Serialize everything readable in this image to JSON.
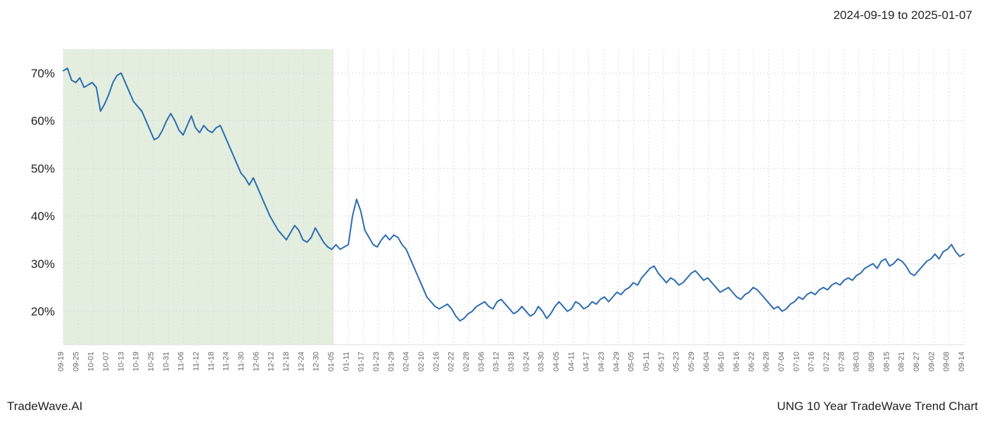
{
  "date_range_label": "2024-09-19 to 2025-01-07",
  "footer_left": "TradeWave.AI",
  "footer_right": "UNG 10 Year TradeWave Trend Chart",
  "chart": {
    "type": "line",
    "line_color": "#2b6cb0",
    "line_width": 2,
    "background_color": "#ffffff",
    "grid_color": "#dcdcdc",
    "grid_dash": "2,3",
    "highlight_band": {
      "from_tick_index": 0,
      "to_tick_index": 18,
      "fill_color": "#d9e8d4",
      "opacity": 0.75
    },
    "ylim": [
      13,
      75
    ],
    "ytick_values": [
      20,
      30,
      40,
      50,
      60,
      70
    ],
    "ytick_labels": [
      "20%",
      "30%",
      "40%",
      "50%",
      "60%",
      "70%"
    ],
    "ylabel_fontsize": 17,
    "ylabel_color": "#222222",
    "xtick_labels": [
      "09-19",
      "09-25",
      "10-01",
      "10-07",
      "10-13",
      "10-19",
      "10-25",
      "10-31",
      "11-06",
      "11-12",
      "11-18",
      "11-24",
      "11-30",
      "12-06",
      "12-12",
      "12-18",
      "12-24",
      "12-30",
      "01-05",
      "01-11",
      "01-17",
      "01-23",
      "01-29",
      "02-04",
      "02-10",
      "02-16",
      "02-22",
      "02-28",
      "03-06",
      "03-12",
      "03-18",
      "03-24",
      "03-30",
      "04-05",
      "04-11",
      "04-17",
      "04-23",
      "04-29",
      "05-05",
      "05-11",
      "05-17",
      "05-23",
      "05-29",
      "06-04",
      "06-10",
      "06-16",
      "06-22",
      "06-28",
      "07-04",
      "07-10",
      "07-16",
      "07-22",
      "07-28",
      "08-03",
      "08-09",
      "08-15",
      "08-21",
      "08-27",
      "09-02",
      "09-08",
      "09-14"
    ],
    "xlabel_fontsize": 11,
    "xlabel_color": "#666666",
    "xlabel_rotation": -90,
    "data_points": [
      70.5,
      71.0,
      68.5,
      68.0,
      69.0,
      67.0,
      67.5,
      68.0,
      67.0,
      62.0,
      63.5,
      65.5,
      68.0,
      69.5,
      70.0,
      68.0,
      66.0,
      64.0,
      63.0,
      62.0,
      60.0,
      58.0,
      56.0,
      56.5,
      58.0,
      60.0,
      61.5,
      60.0,
      58.0,
      57.0,
      59.0,
      61.0,
      58.5,
      57.5,
      59.0,
      58.0,
      57.5,
      58.5,
      59.0,
      57.0,
      55.0,
      53.0,
      51.0,
      49.0,
      48.0,
      46.5,
      48.0,
      46.0,
      44.0,
      42.0,
      40.0,
      38.5,
      37.0,
      36.0,
      35.0,
      36.5,
      38.0,
      37.0,
      35.0,
      34.5,
      35.5,
      37.5,
      36.0,
      34.5,
      33.5,
      33.0,
      34.0,
      33.0,
      33.5,
      34.0,
      40.0,
      43.5,
      41.0,
      37.0,
      35.5,
      34.0,
      33.5,
      35.0,
      36.0,
      35.0,
      36.0,
      35.5,
      34.0,
      33.0,
      31.0,
      29.0,
      27.0,
      25.0,
      23.0,
      22.0,
      21.0,
      20.5,
      21.0,
      21.5,
      20.5,
      19.0,
      18.0,
      18.5,
      19.5,
      20.0,
      21.0,
      21.5,
      22.0,
      21.0,
      20.5,
      22.0,
      22.5,
      21.5,
      20.5,
      19.5,
      20.0,
      21.0,
      20.0,
      19.0,
      19.5,
      21.0,
      20.0,
      18.5,
      19.5,
      21.0,
      22.0,
      21.0,
      20.0,
      20.5,
      22.0,
      21.5,
      20.5,
      21.0,
      22.0,
      21.5,
      22.5,
      23.0,
      22.0,
      23.0,
      24.0,
      23.5,
      24.5,
      25.0,
      26.0,
      25.5,
      27.0,
      28.0,
      29.0,
      29.5,
      28.0,
      27.0,
      26.0,
      27.0,
      26.5,
      25.5,
      26.0,
      27.0,
      28.0,
      28.5,
      27.5,
      26.5,
      27.0,
      26.0,
      25.0,
      24.0,
      24.5,
      25.0,
      24.0,
      23.0,
      22.5,
      23.5,
      24.0,
      25.0,
      24.5,
      23.5,
      22.5,
      21.5,
      20.5,
      21.0,
      20.0,
      20.5,
      21.5,
      22.0,
      23.0,
      22.5,
      23.5,
      24.0,
      23.5,
      24.5,
      25.0,
      24.5,
      25.5,
      26.0,
      25.5,
      26.5,
      27.0,
      26.5,
      27.5,
      28.0,
      29.0,
      29.5,
      30.0,
      29.0,
      30.5,
      31.0,
      29.5,
      30.0,
      31.0,
      30.5,
      29.5,
      28.0,
      27.5,
      28.5,
      29.5,
      30.5,
      31.0,
      32.0,
      31.0,
      32.5,
      33.0,
      34.0,
      32.5,
      31.5,
      32.0
    ]
  }
}
